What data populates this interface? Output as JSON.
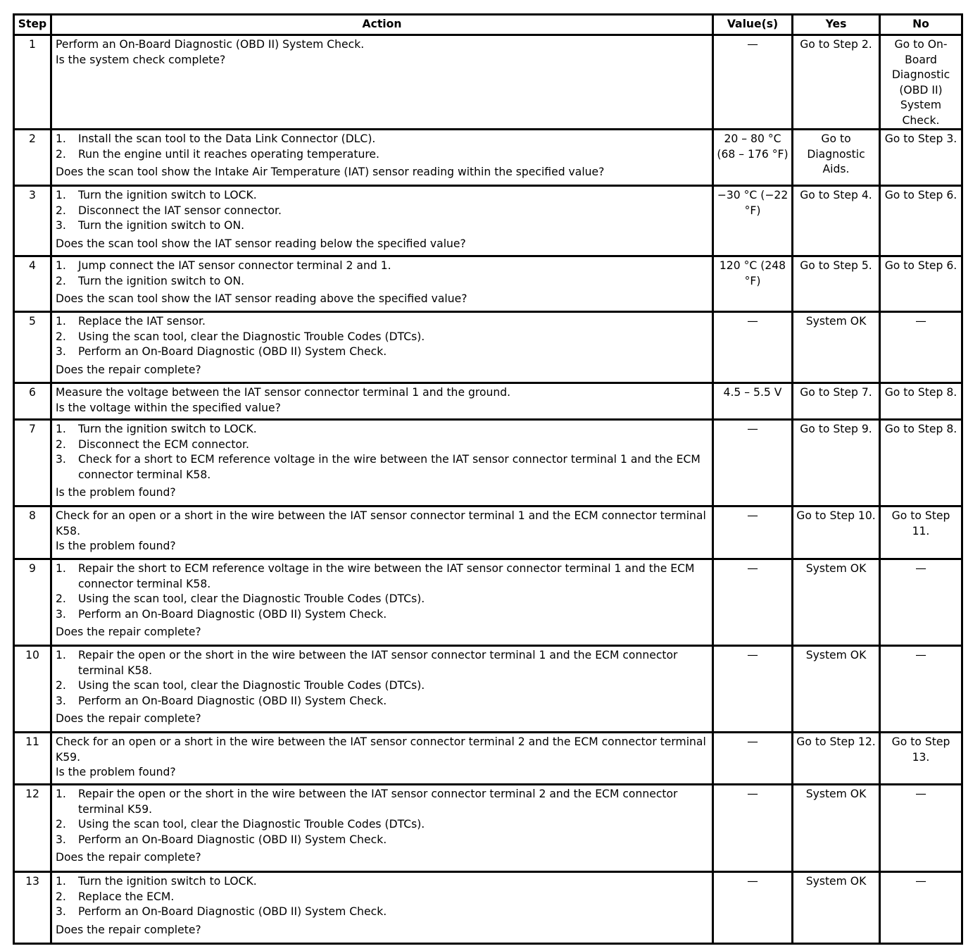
{
  "headers": {
    "step": "Step",
    "action": "Action",
    "value": "Value(s)",
    "yes": "Yes",
    "no": "No"
  },
  "rows": [
    {
      "step": "1",
      "action": [
        {
          "t": "p",
          "text": "Perform an On-Board Diagnostic (OBD II) System Check."
        },
        {
          "t": "p",
          "text": "Is the system check complete?"
        }
      ],
      "value": "—",
      "yes": "Go to Step 2.",
      "no": "Go to On-Board Diagnostic (OBD II) System Check."
    },
    {
      "step": "2",
      "action": [
        {
          "t": "li",
          "n": "1.",
          "text": "Install the scan tool to the Data Link Connector (DLC)."
        },
        {
          "t": "li",
          "n": "2.",
          "text": "Run the engine until it reaches operating temperature."
        },
        {
          "t": "q",
          "text": "Does the scan tool show the Intake Air Temperature (IAT) sensor reading within the specified value?"
        }
      ],
      "value": "20 – 80 °C (68 – 176 °F)",
      "yes": "Go to Diagnostic Aids.",
      "no": "Go to Step 3."
    },
    {
      "step": "3",
      "action": [
        {
          "t": "li",
          "n": "1.",
          "text": "Turn the ignition switch to LOCK."
        },
        {
          "t": "li",
          "n": "2.",
          "text": "Disconnect the IAT sensor connector."
        },
        {
          "t": "li",
          "n": "3.",
          "text": "Turn the ignition switch to ON."
        },
        {
          "t": "q",
          "text": "Does the scan tool show the IAT sensor reading below the specified value?"
        }
      ],
      "value": "−30 °C (−22 °F)",
      "yes": "Go to Step 4.",
      "no": "Go to Step 6."
    },
    {
      "step": "4",
      "action": [
        {
          "t": "li",
          "n": "1.",
          "text": "Jump connect the IAT sensor connector terminal 2 and 1."
        },
        {
          "t": "li",
          "n": "2.",
          "text": "Turn the ignition switch to ON."
        },
        {
          "t": "q",
          "text": "Does the scan tool show the IAT sensor reading above the specified value?"
        }
      ],
      "value": "120 °C (248 °F)",
      "yes": "Go to Step 5.",
      "no": "Go to Step 6."
    },
    {
      "step": "5",
      "action": [
        {
          "t": "li",
          "n": "1.",
          "text": "Replace the IAT sensor."
        },
        {
          "t": "li",
          "n": "2.",
          "text": "Using the scan tool, clear the Diagnostic Trouble Codes (DTCs)."
        },
        {
          "t": "li",
          "n": "3.",
          "text": "Perform an On-Board Diagnostic (OBD II) System Check."
        },
        {
          "t": "q",
          "text": "Does the repair complete?"
        }
      ],
      "value": "—",
      "yes": "System OK",
      "no": "—"
    },
    {
      "step": "6",
      "action": [
        {
          "t": "p",
          "text": "Measure the voltage between the IAT sensor connector terminal 1 and the ground."
        },
        {
          "t": "p",
          "text": "Is the voltage within the specified value?"
        }
      ],
      "value": "4.5 – 5.5 V",
      "yes": "Go to Step 7.",
      "no": "Go to Step 8."
    },
    {
      "step": "7",
      "action": [
        {
          "t": "li",
          "n": "1.",
          "text": "Turn the ignition switch to LOCK."
        },
        {
          "t": "li",
          "n": "2.",
          "text": "Disconnect the ECM connector."
        },
        {
          "t": "li",
          "n": "3.",
          "text": "Check for a short to ECM reference voltage in the wire between the IAT sensor connector terminal 1 and the ECM connector terminal K58."
        },
        {
          "t": "q",
          "text": "Is the problem found?"
        }
      ],
      "value": "—",
      "yes": "Go to Step 9.",
      "no": "Go to Step 8."
    },
    {
      "step": "8",
      "action": [
        {
          "t": "p",
          "text": "Check for an open or a short in the wire between the IAT sensor connector terminal 1 and the ECM connector terminal K58."
        },
        {
          "t": "p",
          "text": "Is the problem found?"
        }
      ],
      "value": "—",
      "yes": "Go to Step 10.",
      "no": "Go to Step 11."
    },
    {
      "step": "9",
      "action": [
        {
          "t": "li",
          "n": "1.",
          "text": "Repair the short to ECM reference voltage in the wire between the IAT sensor connector terminal 1 and the ECM connector terminal K58."
        },
        {
          "t": "li",
          "n": "2.",
          "text": "Using the scan tool, clear the Diagnostic Trouble Codes (DTCs)."
        },
        {
          "t": "li",
          "n": "3.",
          "text": "Perform an On-Board Diagnostic (OBD II) System Check."
        },
        {
          "t": "q",
          "text": "Does the repair complete?"
        }
      ],
      "value": "—",
      "yes": "System OK",
      "no": "—"
    },
    {
      "step": "10",
      "action": [
        {
          "t": "li",
          "n": "1.",
          "text": "Repair the open or the short in the wire between the IAT sensor connector terminal 1 and the ECM connector terminal K58."
        },
        {
          "t": "li",
          "n": "2.",
          "text": "Using the scan tool, clear the Diagnostic Trouble Codes (DTCs)."
        },
        {
          "t": "li",
          "n": "3.",
          "text": "Perform an On-Board Diagnostic (OBD II) System Check."
        },
        {
          "t": "q",
          "text": "Does the repair complete?"
        }
      ],
      "value": "—",
      "yes": "System OK",
      "no": "—"
    },
    {
      "step": "11",
      "action": [
        {
          "t": "p",
          "text": "Check for an open or a short in the wire between the IAT sensor connector terminal 2 and the ECM connector terminal K59."
        },
        {
          "t": "p",
          "text": "Is the problem found?"
        }
      ],
      "value": "—",
      "yes": "Go to Step 12.",
      "no": "Go to Step 13."
    },
    {
      "step": "12",
      "action": [
        {
          "t": "li",
          "n": "1.",
          "text": "Repair the open or the short in the wire between the IAT sensor connector terminal 2 and the ECM connector terminal K59."
        },
        {
          "t": "li",
          "n": "2.",
          "text": "Using the scan tool, clear the Diagnostic Trouble Codes (DTCs)."
        },
        {
          "t": "li",
          "n": "3.",
          "text": "Perform an On-Board Diagnostic (OBD II) System Check."
        },
        {
          "t": "q",
          "text": "Does the repair complete?"
        }
      ],
      "value": "—",
      "yes": "System OK",
      "no": "—"
    },
    {
      "step": "13",
      "action": [
        {
          "t": "li",
          "n": "1.",
          "text": "Turn the ignition switch to LOCK."
        },
        {
          "t": "li",
          "n": "2.",
          "text": "Replace the ECM."
        },
        {
          "t": "li",
          "n": "3.",
          "text": "Perform an On-Board Diagnostic (OBD II) System Check."
        },
        {
          "t": "q",
          "text": "Does the repair complete?"
        }
      ],
      "value": "—",
      "yes": "System OK",
      "no": "—"
    }
  ]
}
